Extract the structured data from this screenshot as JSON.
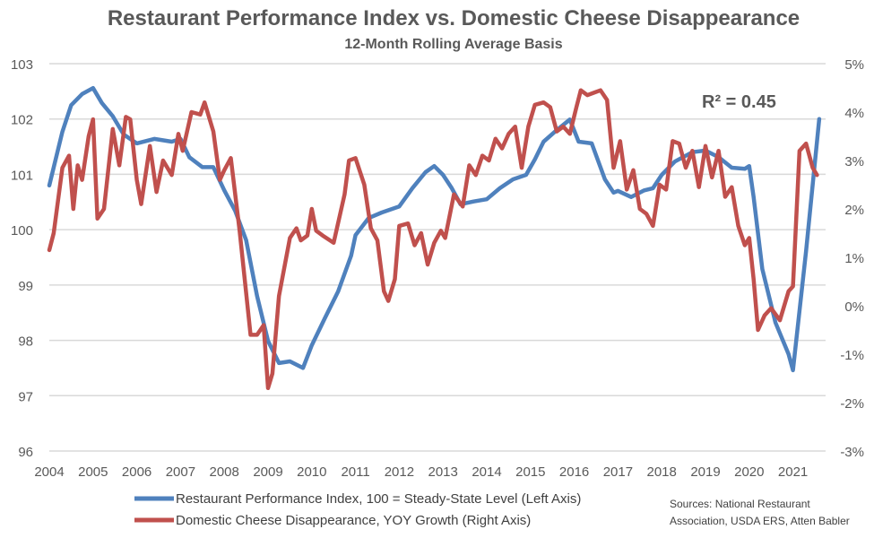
{
  "chart_data": {
    "type": "line",
    "title": "Restaurant Performance Index vs. Domestic Cheese Disappearance",
    "subtitle": "12-Month Rolling Average Basis",
    "annotation": "R² = 0.45",
    "source": [
      "Sources: National Restaurant",
      "Association, USDA ERS, Atten Babler"
    ],
    "x_ticks": [
      "2004",
      "2005",
      "2006",
      "2007",
      "2008",
      "2009",
      "2010",
      "2011",
      "2012",
      "2013",
      "2014",
      "2015",
      "2016",
      "2017",
      "2018",
      "2019",
      "2020",
      "2021"
    ],
    "xlim": [
      2004,
      2021.75
    ],
    "left_axis": {
      "ylim": [
        96,
        103
      ],
      "ticks": [
        "96",
        "97",
        "98",
        "99",
        "100",
        "101",
        "102",
        "103"
      ],
      "tick_values": [
        96,
        97,
        98,
        99,
        100,
        101,
        102,
        103
      ]
    },
    "right_axis": {
      "ylim": [
        -3,
        5
      ],
      "ticks": [
        "-3%",
        "-2%",
        "-1%",
        "0%",
        "1%",
        "2%",
        "3%",
        "4%",
        "5%"
      ],
      "tick_values": [
        -3,
        -2,
        -1,
        0,
        1,
        2,
        3,
        4,
        5
      ]
    },
    "grid": true,
    "legend_position": "bottom",
    "series": [
      {
        "name": "Restaurant Performance Index, 100 = Steady-State Level (Left Axis)",
        "axis": "left",
        "color": "#4F81BD",
        "x": [
          2004.0,
          2004.3,
          2004.5,
          2004.75,
          2005.0,
          2005.2,
          2005.45,
          2005.7,
          2006.0,
          2006.4,
          2006.8,
          2007.0,
          2007.2,
          2007.5,
          2007.75,
          2008.0,
          2008.25,
          2008.5,
          2008.75,
          2009.0,
          2009.25,
          2009.5,
          2009.8,
          2010.0,
          2010.3,
          2010.6,
          2010.9,
          2011.0,
          2011.3,
          2011.6,
          2012.0,
          2012.3,
          2012.6,
          2012.8,
          2013.0,
          2013.2,
          2013.4,
          2013.7,
          2014.0,
          2014.3,
          2014.6,
          2014.9,
          2015.1,
          2015.3,
          2015.6,
          2015.9,
          2016.1,
          2016.4,
          2016.7,
          2016.9,
          2017.0,
          2017.3,
          2017.6,
          2017.8,
          2018.0,
          2018.3,
          2018.7,
          2019.0,
          2019.3,
          2019.6,
          2019.9,
          2020.0,
          2020.1,
          2020.3,
          2020.6,
          2020.9,
          2021.0,
          2021.3,
          2021.6
        ],
        "values": [
          100.8,
          101.77,
          102.25,
          102.45,
          102.56,
          102.29,
          102.05,
          101.72,
          101.56,
          101.64,
          101.59,
          101.64,
          101.31,
          101.13,
          101.13,
          100.71,
          100.34,
          99.81,
          98.8,
          97.99,
          97.59,
          97.62,
          97.5,
          97.91,
          98.4,
          98.88,
          99.53,
          99.9,
          100.21,
          100.31,
          100.42,
          100.75,
          101.04,
          101.15,
          100.99,
          100.75,
          100.46,
          100.51,
          100.55,
          100.75,
          100.91,
          100.99,
          101.27,
          101.59,
          101.8,
          101.99,
          101.59,
          101.56,
          100.91,
          100.67,
          100.7,
          100.59,
          100.71,
          100.75,
          100.99,
          101.23,
          101.4,
          101.43,
          101.31,
          101.12,
          101.1,
          101.15,
          100.59,
          99.29,
          98.32,
          97.75,
          97.46,
          99.61,
          102.0
        ]
      },
      {
        "name": "Domestic Cheese Disappearance, YOY Growth (Right Axis)",
        "axis": "right",
        "color": "#C0504D",
        "x": [
          2004.0,
          2004.1,
          2004.3,
          2004.45,
          2004.55,
          2004.65,
          2004.75,
          2004.9,
          2005.0,
          2005.1,
          2005.25,
          2005.45,
          2005.6,
          2005.75,
          2005.85,
          2006.0,
          2006.1,
          2006.3,
          2006.45,
          2006.6,
          2006.8,
          2006.95,
          2007.05,
          2007.25,
          2007.45,
          2007.55,
          2007.75,
          2007.9,
          2008.0,
          2008.15,
          2008.35,
          2008.6,
          2008.75,
          2008.9,
          2009.0,
          2009.1,
          2009.25,
          2009.5,
          2009.65,
          2009.75,
          2009.9,
          2010.0,
          2010.1,
          2010.25,
          2010.5,
          2010.75,
          2010.85,
          2011.0,
          2011.2,
          2011.35,
          2011.5,
          2011.65,
          2011.75,
          2011.9,
          2012.0,
          2012.2,
          2012.35,
          2012.5,
          2012.65,
          2012.8,
          2012.95,
          2013.05,
          2013.25,
          2013.45,
          2013.6,
          2013.75,
          2013.9,
          2014.05,
          2014.2,
          2014.35,
          2014.5,
          2014.65,
          2014.8,
          2014.95,
          2015.1,
          2015.3,
          2015.45,
          2015.6,
          2015.75,
          2015.9,
          2016.05,
          2016.15,
          2016.3,
          2016.45,
          2016.6,
          2016.75,
          2016.9,
          2017.05,
          2017.2,
          2017.35,
          2017.5,
          2017.65,
          2017.8,
          2017.95,
          2018.1,
          2018.25,
          2018.4,
          2018.55,
          2018.7,
          2018.85,
          2019.0,
          2019.15,
          2019.3,
          2019.45,
          2019.6,
          2019.75,
          2019.9,
          2020.0,
          2020.1,
          2020.2,
          2020.35,
          2020.5,
          2020.7,
          2020.9,
          2021.0,
          2021.15,
          2021.3,
          2021.45,
          2021.55
        ],
        "values": [
          1.15,
          1.5,
          2.85,
          3.1,
          2.0,
          2.9,
          2.6,
          3.5,
          3.85,
          1.8,
          2.0,
          3.65,
          2.9,
          3.9,
          3.85,
          2.6,
          2.1,
          3.3,
          2.35,
          3.0,
          2.7,
          3.55,
          3.2,
          4.0,
          3.95,
          4.2,
          3.6,
          2.6,
          2.8,
          3.05,
          1.55,
          -0.6,
          -0.6,
          -0.4,
          -1.7,
          -1.4,
          0.2,
          1.4,
          1.6,
          1.35,
          1.45,
          2.0,
          1.55,
          1.45,
          1.3,
          2.3,
          3.0,
          3.05,
          2.5,
          1.6,
          1.35,
          0.3,
          0.1,
          0.55,
          1.65,
          1.7,
          1.25,
          1.5,
          0.85,
          1.3,
          1.55,
          1.4,
          2.3,
          2.05,
          2.9,
          2.7,
          3.1,
          3.0,
          3.45,
          3.25,
          3.55,
          3.7,
          2.85,
          3.7,
          4.15,
          4.2,
          4.1,
          3.6,
          3.7,
          3.55,
          4.1,
          4.45,
          4.35,
          4.4,
          4.45,
          4.25,
          2.85,
          3.4,
          2.4,
          2.8,
          2.0,
          1.9,
          1.65,
          2.5,
          2.4,
          3.4,
          3.35,
          2.85,
          3.2,
          2.45,
          3.3,
          2.65,
          3.2,
          2.25,
          2.45,
          1.65,
          1.25,
          1.4,
          0.55,
          -0.5,
          -0.2,
          -0.05,
          -0.3,
          0.3,
          0.4,
          3.2,
          3.35,
          2.85,
          2.7
        ]
      }
    ]
  }
}
